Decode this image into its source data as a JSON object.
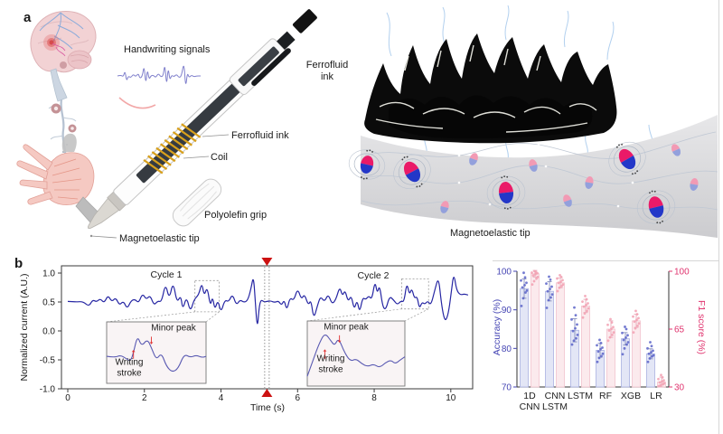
{
  "figure": {
    "panel_a_label": "a",
    "panel_b_label": "b"
  },
  "panel_a": {
    "labels": {
      "handwriting_signals": "Handwriting signals",
      "ferrofluid_ink_pen": "Ferrofluid ink",
      "coil": "Coil",
      "polyolefin_grip": "Polyolefin grip",
      "magnetoelastic_tip_pen": "Magnetoelastic tip",
      "ferrofluid_ink_blob": "Ferrofluid ink",
      "magnetoelastic_tip_membrane": "Magnetoelastic tip"
    },
    "signal_trace": [
      [
        0,
        20
      ],
      [
        4,
        19
      ],
      [
        7,
        21
      ],
      [
        9,
        14
      ],
      [
        11,
        26
      ],
      [
        13,
        20
      ],
      [
        16,
        22
      ],
      [
        19,
        18
      ],
      [
        22,
        21
      ],
      [
        25,
        17
      ],
      [
        27,
        23
      ],
      [
        30,
        20
      ],
      [
        32,
        8
      ],
      [
        34,
        30
      ],
      [
        36,
        12
      ],
      [
        38,
        24
      ],
      [
        40,
        20
      ],
      [
        43,
        19
      ],
      [
        46,
        22
      ],
      [
        49,
        17
      ],
      [
        52,
        21
      ],
      [
        55,
        20
      ],
      [
        57,
        6
      ],
      [
        59,
        32
      ],
      [
        61,
        10
      ],
      [
        63,
        25
      ],
      [
        65,
        19
      ],
      [
        68,
        21
      ],
      [
        71,
        18
      ],
      [
        74,
        22
      ],
      [
        77,
        20
      ],
      [
        80,
        4
      ],
      [
        82,
        34
      ],
      [
        84,
        16
      ],
      [
        86,
        22
      ],
      [
        89,
        19
      ],
      [
        92,
        21
      ],
      [
        95,
        20
      ],
      [
        100,
        20
      ]
    ]
  },
  "chart_data": [
    {
      "type": "line",
      "panel": "b-left",
      "xlabel": "Time (s)",
      "ylabel": "Normalized current (A.U.)",
      "xlim": [
        0,
        10.5
      ],
      "ylim": [
        -1.0,
        1.0
      ],
      "xticks": [
        0,
        2,
        4,
        6,
        8,
        10
      ],
      "yticks": [
        1.0,
        0.5,
        0.0,
        -0.5,
        -1.0
      ],
      "line_color": "#2626a3",
      "annotations": {
        "cycle1": "Cycle 1",
        "cycle2": "Cycle 2",
        "minor_peak": "Minor peak",
        "writing_stroke": "Writing stroke"
      },
      "event_marker_time_s": 5.2,
      "zoom_regions": [
        {
          "t1": 3.32,
          "t2": 3.95,
          "v1": 0.33,
          "v2": 0.87
        },
        {
          "t1": 8.72,
          "t2": 9.42,
          "v1": 0.38,
          "v2": 0.9
        }
      ],
      "series": [
        {
          "name": "Normalized current (A.U.)",
          "points": [
            [
              0,
              0.51
            ],
            [
              0.2,
              0.5
            ],
            [
              0.4,
              0.51
            ],
            [
              0.55,
              0.42
            ],
            [
              0.65,
              0.54
            ],
            [
              0.75,
              0.5
            ],
            [
              0.85,
              0.56
            ],
            [
              0.95,
              0.48
            ],
            [
              1.05,
              0.62
            ],
            [
              1.15,
              0.5
            ],
            [
              1.25,
              0.58
            ],
            [
              1.35,
              0.44
            ],
            [
              1.45,
              0.52
            ],
            [
              1.55,
              0.38
            ],
            [
              1.65,
              0.52
            ],
            [
              1.75,
              0.55
            ],
            [
              1.85,
              0.48
            ],
            [
              1.95,
              0.65
            ],
            [
              2.05,
              0.54
            ],
            [
              2.15,
              0.62
            ],
            [
              2.25,
              0.44
            ],
            [
              2.35,
              0.52
            ],
            [
              2.45,
              0.5
            ],
            [
              2.55,
              0.83
            ],
            [
              2.65,
              0.54
            ],
            [
              2.75,
              0.86
            ],
            [
              2.85,
              0.48
            ],
            [
              2.95,
              0.62
            ],
            [
              3.0,
              0.36
            ],
            [
              3.1,
              0.6
            ],
            [
              3.2,
              0.32
            ],
            [
              3.3,
              0.55
            ],
            [
              3.42,
              0.62
            ],
            [
              3.5,
              0.84
            ],
            [
              3.56,
              0.6
            ],
            [
              3.64,
              0.77
            ],
            [
              3.72,
              0.42
            ],
            [
              3.78,
              0.6
            ],
            [
              3.84,
              0.36
            ],
            [
              3.92,
              0.54
            ],
            [
              4.0,
              0.31
            ],
            [
              4.1,
              0.54
            ],
            [
              4.2,
              0.5
            ],
            [
              4.3,
              0.64
            ],
            [
              4.4,
              0.44
            ],
            [
              4.5,
              0.54
            ],
            [
              4.6,
              0.49
            ],
            [
              4.7,
              0.53
            ],
            [
              4.78,
              0.72
            ],
            [
              4.85,
              0.97
            ],
            [
              4.9,
              0.45
            ],
            [
              4.95,
              0.02
            ],
            [
              5.0,
              0.44
            ],
            [
              5.05,
              0.54
            ],
            [
              5.12,
              0.5
            ],
            [
              5.2,
              0.51
            ],
            [
              5.3,
              0.52
            ],
            [
              5.4,
              0.49
            ],
            [
              5.5,
              0.52
            ],
            [
              5.58,
              0.44
            ],
            [
              5.65,
              0.54
            ],
            [
              5.72,
              0.35
            ],
            [
              5.8,
              0.58
            ],
            [
              5.9,
              0.52
            ],
            [
              6.0,
              0.74
            ],
            [
              6.1,
              0.54
            ],
            [
              6.18,
              0.64
            ],
            [
              6.28,
              0.44
            ],
            [
              6.35,
              0.54
            ],
            [
              6.42,
              0.2
            ],
            [
              6.52,
              0.44
            ],
            [
              6.6,
              0.6
            ],
            [
              6.7,
              0.5
            ],
            [
              6.8,
              0.64
            ],
            [
              6.9,
              0.46
            ],
            [
              7.0,
              0.54
            ],
            [
              7.1,
              0.77
            ],
            [
              7.17,
              0.6
            ],
            [
              7.24,
              0.71
            ],
            [
              7.32,
              0.5
            ],
            [
              7.4,
              0.62
            ],
            [
              7.48,
              0.36
            ],
            [
              7.55,
              0.54
            ],
            [
              7.62,
              0.31
            ],
            [
              7.7,
              0.58
            ],
            [
              7.78,
              0.54
            ],
            [
              7.86,
              0.61
            ],
            [
              7.94,
              0.54
            ],
            [
              8.02,
              0.87
            ],
            [
              8.08,
              0.64
            ],
            [
              8.14,
              0.8
            ],
            [
              8.22,
              0.42
            ],
            [
              8.3,
              0.36
            ],
            [
              8.4,
              0.6
            ],
            [
              8.5,
              0.54
            ],
            [
              8.6,
              0.45
            ],
            [
              8.7,
              0.52
            ],
            [
              8.78,
              0.5
            ],
            [
              8.85,
              0.84
            ],
            [
              8.92,
              0.62
            ],
            [
              8.98,
              0.74
            ],
            [
              9.05,
              0.56
            ],
            [
              9.12,
              0.6
            ],
            [
              9.18,
              0.38
            ],
            [
              9.25,
              0.5
            ],
            [
              9.32,
              0.46
            ],
            [
              9.4,
              0.52
            ],
            [
              9.48,
              0.44
            ],
            [
              9.58,
              0.7
            ],
            [
              9.68,
              0.94
            ],
            [
              9.75,
              0.5
            ],
            [
              9.82,
              0.22
            ],
            [
              9.88,
              0.18
            ],
            [
              9.95,
              0.35
            ],
            [
              10.02,
              0.72
            ],
            [
              10.08,
              1.0
            ],
            [
              10.15,
              0.7
            ],
            [
              10.25,
              0.62
            ],
            [
              10.35,
              0.64
            ],
            [
              10.45,
              0.62
            ]
          ]
        }
      ],
      "insets": [
        {
          "points_pct": [
            [
              0,
              56
            ],
            [
              8,
              58
            ],
            [
              14,
              54
            ],
            [
              20,
              60
            ],
            [
              24,
              64
            ],
            [
              27,
              50
            ],
            [
              31,
              22
            ],
            [
              35,
              40
            ],
            [
              41,
              28
            ],
            [
              45,
              42
            ],
            [
              50,
              62
            ],
            [
              55,
              50
            ],
            [
              60,
              72
            ],
            [
              66,
              82
            ],
            [
              72,
              76
            ],
            [
              78,
              52
            ],
            [
              84,
              58
            ],
            [
              90,
              54
            ],
            [
              96,
              58
            ],
            [
              100,
              56
            ]
          ]
        },
        {
          "points_pct": [
            [
              0,
              85
            ],
            [
              6,
              60
            ],
            [
              12,
              35
            ],
            [
              18,
              18
            ],
            [
              24,
              30
            ],
            [
              28,
              38
            ],
            [
              32,
              26
            ],
            [
              38,
              48
            ],
            [
              44,
              62
            ],
            [
              50,
              58
            ],
            [
              56,
              66
            ],
            [
              62,
              70
            ],
            [
              68,
              66
            ],
            [
              74,
              72
            ],
            [
              80,
              64
            ],
            [
              86,
              60
            ],
            [
              90,
              66
            ],
            [
              95,
              60
            ],
            [
              100,
              55
            ]
          ]
        }
      ]
    },
    {
      "type": "bar",
      "panel": "b-right",
      "categories": [
        "1D\nCNN",
        "CNN\nLSTM",
        "LSTM",
        "RF",
        "XGB",
        "LR"
      ],
      "left_axis": {
        "label": "Accuracy (%)",
        "lim": [
          70,
          100
        ],
        "ticks": [
          70,
          80,
          90,
          100
        ],
        "color": "#4646b4"
      },
      "right_axis": {
        "label": "F1 score (%)",
        "lim": [
          30,
          100
        ],
        "ticks": [
          30,
          65,
          100
        ],
        "color": "#e0336e"
      },
      "series": [
        {
          "name": "Accuracy",
          "axis": "left",
          "bar_fill": "#e3e6f6",
          "bar_edge": "#a9b1e2",
          "point_color": "#5a63c8",
          "error_color": "#8890bc",
          "values": [
            95.5,
            94.8,
            84.7,
            79.5,
            82.5,
            78.6
          ],
          "errors": [
            2.5,
            2.5,
            3.0,
            1.8,
            1.6,
            1.3
          ],
          "points": [
            [
              91,
              93,
              94.5,
              95,
              95.8,
              96.4,
              97,
              97.6,
              98.4,
              99.6
            ],
            [
              90.5,
              92.5,
              93.2,
              94,
              94.8,
              95.4,
              96,
              96.8,
              97.8,
              98.6
            ],
            [
              81,
              82,
              82.6,
              83.5,
              84.5,
              85.2,
              86.2,
              87.5,
              88.6,
              90.6
            ],
            [
              76.5,
              77.5,
              78,
              78.6,
              79.2,
              79.8,
              80.2,
              80.8,
              81.4,
              82.2
            ],
            [
              78.5,
              80,
              81,
              81.6,
              82.2,
              82.8,
              83.4,
              84,
              85,
              85.6
            ],
            [
              76.5,
              77.4,
              77.9,
              78.2,
              78.6,
              79,
              79.4,
              80,
              80.6,
              81.6
            ]
          ]
        },
        {
          "name": "F1 score",
          "axis": "right",
          "bar_fill": "#fbeaed",
          "bar_edge": "#f3c3cd",
          "point_color": "#f2a0b2",
          "error_color": "#e8aebc",
          "values": [
            98.5,
            93,
            79,
            65,
            70,
            33
          ],
          "errors": [
            2,
            3,
            4,
            5,
            4,
            3
          ],
          "points": [
            [
              92,
              94,
              95.5,
              96.5,
              97.5,
              98.2,
              98.8,
              99.2,
              99.6,
              100
            ],
            [
              88,
              90,
              91,
              92,
              93,
              93.6,
              94.6,
              95.6,
              96.6,
              97.6
            ],
            [
              72,
              74.5,
              76,
              77.5,
              78.6,
              79.6,
              80.6,
              81.6,
              83,
              85
            ],
            [
              58,
              60,
              61.5,
              63,
              64.2,
              65.2,
              66.2,
              67.6,
              69,
              71
            ],
            [
              63,
              65.5,
              67,
              68.5,
              69.6,
              70.6,
              71.6,
              72.6,
              74,
              76
            ],
            [
              30.5,
              31,
              31.6,
              32.2,
              32.8,
              33.4,
              34,
              34.8,
              35.8,
              37.2
            ]
          ]
        }
      ]
    }
  ]
}
